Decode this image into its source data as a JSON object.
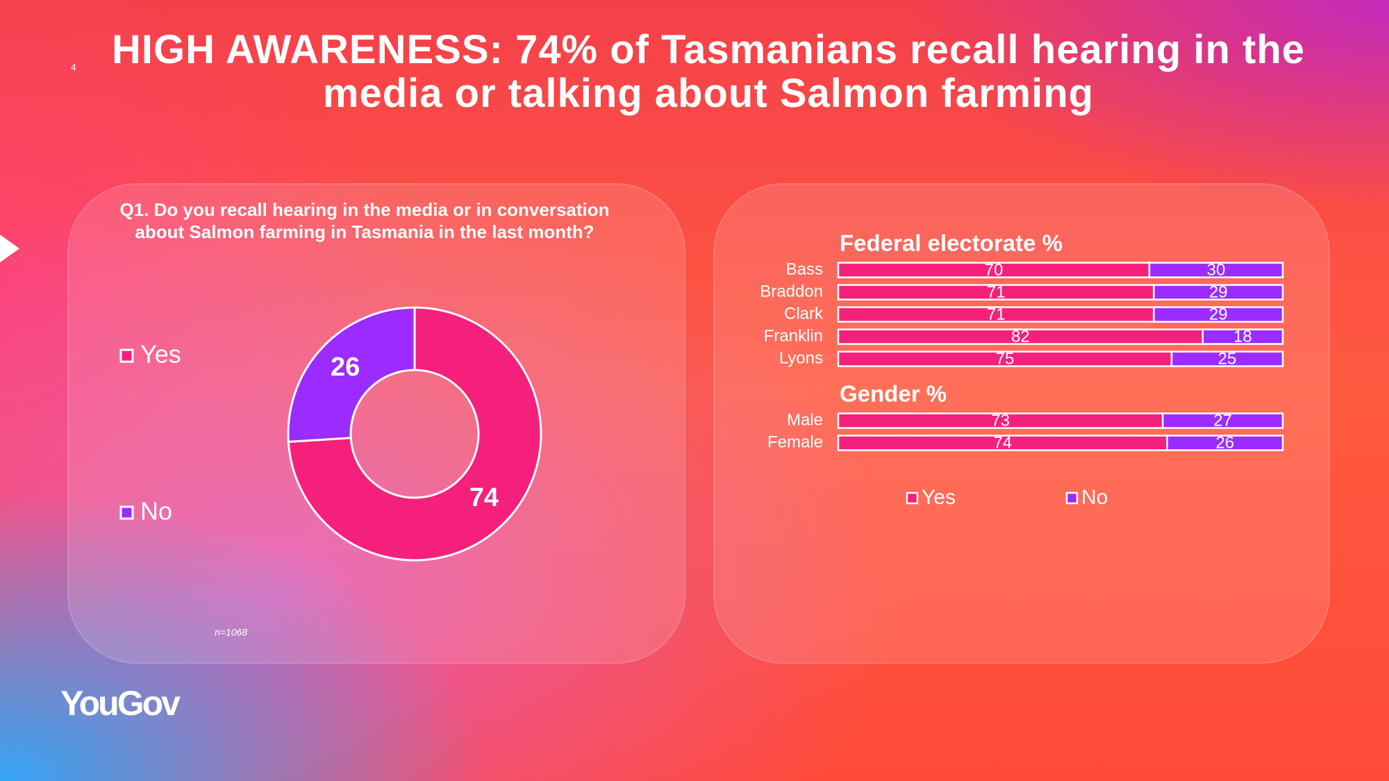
{
  "slide_number": "4",
  "title": "HIGH AWARENESS: 74% of Tasmanians recall hearing in the media or talking about Salmon farming",
  "logo": "YouGov",
  "chart_data": [
    {
      "type": "pie",
      "donut": true,
      "title": "Q1. Do you recall hearing in the media or in conversation about Salmon farming in Tasmania in the last month?",
      "categories": [
        "Yes",
        "No"
      ],
      "values": [
        74,
        26
      ],
      "colors": [
        "#f5207c",
        "#9b2bff"
      ],
      "note": "n=1068"
    },
    {
      "type": "bar",
      "orientation": "horizontal",
      "stacked": true,
      "xlim": [
        0,
        100
      ],
      "series": [
        {
          "name": "Yes",
          "color": "#f5207c"
        },
        {
          "name": "No",
          "color": "#9b2bff"
        }
      ],
      "groups": [
        {
          "title": "Federal electorate %",
          "categories": [
            "Bass",
            "Braddon",
            "Clark",
            "Franklin",
            "Lyons"
          ],
          "series": [
            {
              "values": [
                70,
                71,
                71,
                82,
                75
              ]
            },
            {
              "values": [
                30,
                29,
                29,
                18,
                25
              ]
            }
          ]
        },
        {
          "title": "Gender %",
          "categories": [
            "Male",
            "Female"
          ],
          "series": [
            {
              "values": [
                73,
                74
              ]
            },
            {
              "values": [
                27,
                26
              ]
            }
          ]
        }
      ]
    }
  ]
}
